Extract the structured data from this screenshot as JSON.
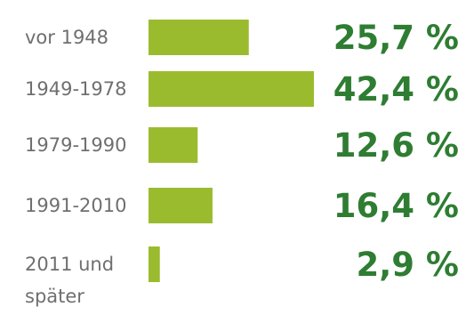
{
  "chart_data": {
    "type": "bar",
    "orientation": "horizontal",
    "categories": [
      [
        "vor 1948"
      ],
      [
        "1949-1978"
      ],
      [
        "1979-1990"
      ],
      [
        "1991-2010"
      ],
      [
        "2011 und",
        "später"
      ]
    ],
    "values": [
      25.7,
      42.4,
      12.6,
      16.4,
      2.9
    ],
    "value_labels": [
      "25,7 %",
      "42,4 %",
      "12,6 %",
      "16,4 %",
      "2,9 %"
    ],
    "unit": "%",
    "title": "",
    "xlabel": "",
    "ylabel": "",
    "xlim": [
      0,
      42.4
    ],
    "grid": false,
    "legend": "none",
    "colors": {
      "bar": "#9bbb2f",
      "value_text": "#2e7d32",
      "category_text": "#6f6f6f",
      "background": "#ffffff"
    }
  }
}
